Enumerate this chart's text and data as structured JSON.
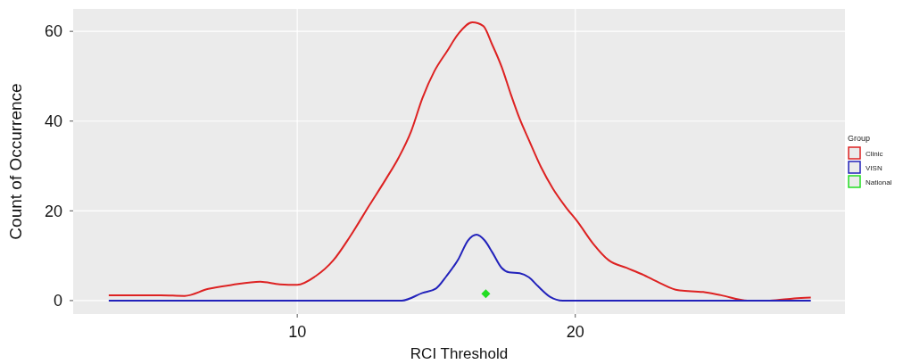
{
  "chart_data": {
    "type": "line",
    "xlabel": "RCI Threshold",
    "ylabel": "Count of Occurrence",
    "legend_title": "Group",
    "legend": "right",
    "grid": true,
    "xlim": [
      1.94,
      29.7
    ],
    "xticks": [
      10,
      20
    ],
    "ylim": [
      -3,
      65
    ],
    "yticks": [
      0,
      20,
      40,
      60
    ],
    "series": [
      {
        "name": "Clinic",
        "color": "#dd2222",
        "x": [
          3.22,
          5.09,
          5.95,
          6.8,
          7.66,
          8.67,
          9.37,
          10.0,
          10.65,
          11.3,
          11.9,
          12.6,
          13.2,
          13.65,
          14.1,
          14.5,
          14.93,
          15.38,
          15.8,
          16.3,
          16.69,
          17.0,
          17.35,
          17.68,
          18.0,
          18.33,
          18.77,
          19.2,
          19.65,
          20.09,
          20.64,
          21.2,
          21.84,
          22.39,
          23.05,
          23.7,
          24.6,
          25.24,
          26.2,
          27.0,
          27.87,
          28.47
        ],
        "values": [
          1.2,
          1.2,
          1.05,
          2.6,
          3.5,
          4.2,
          3.6,
          3.5,
          5.4,
          9.0,
          14.3,
          21.3,
          27.2,
          31.9,
          37.8,
          45.1,
          51.1,
          55.5,
          59.5,
          62.0,
          61.2,
          57.2,
          52.1,
          46,
          40.5,
          35.8,
          29.7,
          24.9,
          20.9,
          17.5,
          12.7,
          9.0,
          7.3,
          5.9,
          3.9,
          2.3,
          1.9,
          1.2,
          0,
          0,
          0.5,
          0.7
        ]
      },
      {
        "name": "VISN",
        "color": "#2222bb",
        "x": [
          3.22,
          13.76,
          14.5,
          14.99,
          15.36,
          15.8,
          16.14,
          16.45,
          16.74,
          17.02,
          17.35,
          17.62,
          18.0,
          18.33,
          18.66,
          19.1,
          19.54,
          28.47
        ],
        "values": [
          0,
          0,
          1.7,
          2.7,
          5.4,
          9.3,
          13.4,
          14.7,
          13.4,
          10.7,
          7.3,
          6.3,
          6.1,
          5.2,
          3.2,
          0.8,
          0,
          0
        ]
      },
      {
        "name": "National",
        "type": "scatter",
        "marker": "diamond",
        "color": "#22dd22",
        "x": [
          16.78
        ],
        "values": [
          1.5
        ]
      }
    ]
  }
}
